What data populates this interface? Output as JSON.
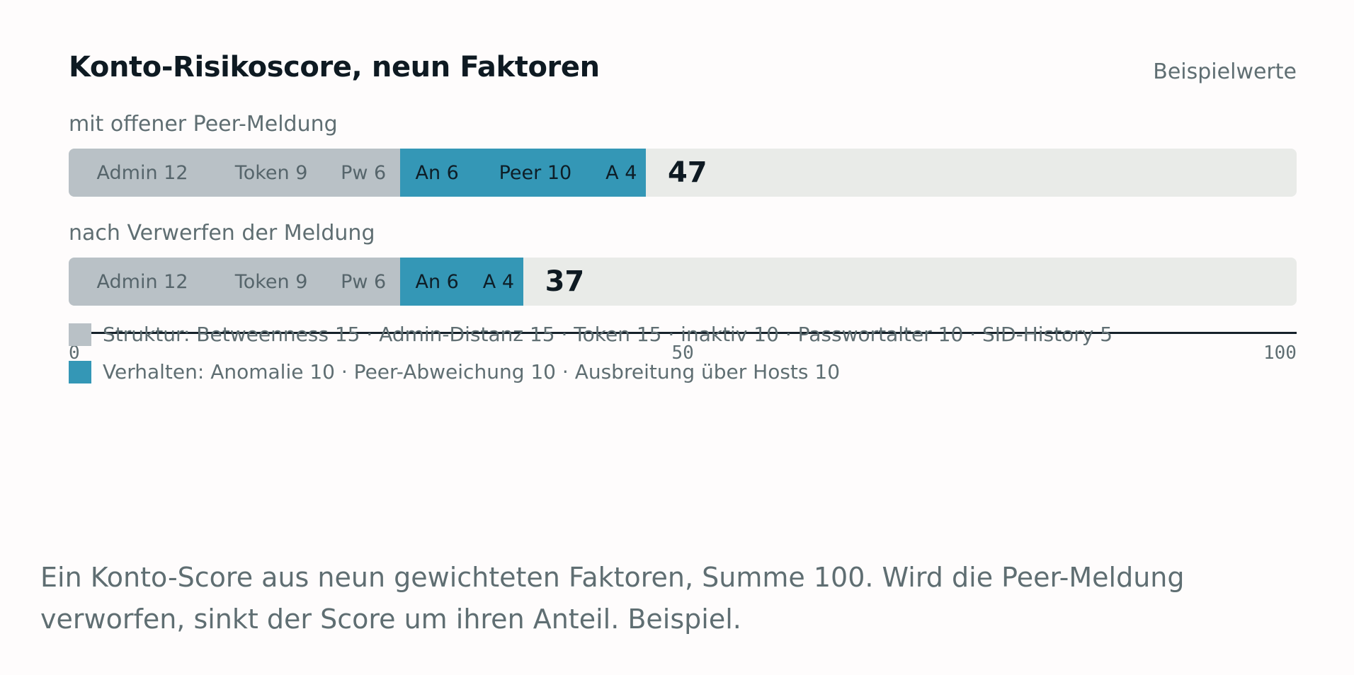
{
  "header": {
    "title": "Konto-Risikoscore, neun Faktoren",
    "note": "Beispielwerte"
  },
  "chart_data": {
    "type": "bar",
    "orientation": "horizontal-stacked",
    "title": "Konto-Risikoscore, neun Faktoren",
    "xlim": [
      0,
      100
    ],
    "x_ticks": [
      "0",
      "50",
      "100"
    ],
    "grid": false,
    "legend_position": "bottom-left",
    "colors": {
      "struktur": "#b9c1c6",
      "verhalten": "#3497b6",
      "track": "#e9ebe8"
    },
    "rows": [
      {
        "label": "mit offener Peer-Meldung",
        "total": "47",
        "segments": [
          {
            "label": "Admin 12",
            "value": 12,
            "group": "struktur"
          },
          {
            "label": "Token 9",
            "value": 9,
            "group": "struktur"
          },
          {
            "label": "Pw 6",
            "value": 6,
            "group": "struktur"
          },
          {
            "label": "An 6",
            "value": 6,
            "group": "verhalten"
          },
          {
            "label": "Peer 10",
            "value": 10,
            "group": "verhalten"
          },
          {
            "label": "A 4",
            "value": 4,
            "group": "verhalten"
          }
        ]
      },
      {
        "label": "nach Verwerfen der Meldung",
        "total": "37",
        "segments": [
          {
            "label": "Admin 12",
            "value": 12,
            "group": "struktur"
          },
          {
            "label": "Token 9",
            "value": 9,
            "group": "struktur"
          },
          {
            "label": "Pw 6",
            "value": 6,
            "group": "struktur"
          },
          {
            "label": "An 6",
            "value": 6,
            "group": "verhalten"
          },
          {
            "label": "A 4",
            "value": 4,
            "group": "verhalten"
          }
        ]
      }
    ],
    "legend": [
      {
        "group": "struktur",
        "text": "Struktur: Betweenness 15 · Admin-Distanz 15 · Token 15 · inaktiv 10 · Passwortalter 10 · SID-History 5"
      },
      {
        "group": "verhalten",
        "text": "Verhalten: Anomalie 10 · Peer-Abweichung 10 · Ausbreitung über Hosts 10"
      }
    ]
  },
  "caption": "Ein Konto-Score aus neun gewichteten Faktoren, Summe 100. Wird die Peer-Meldung verworfen, sinkt der Score um ihren Anteil. Beispiel."
}
